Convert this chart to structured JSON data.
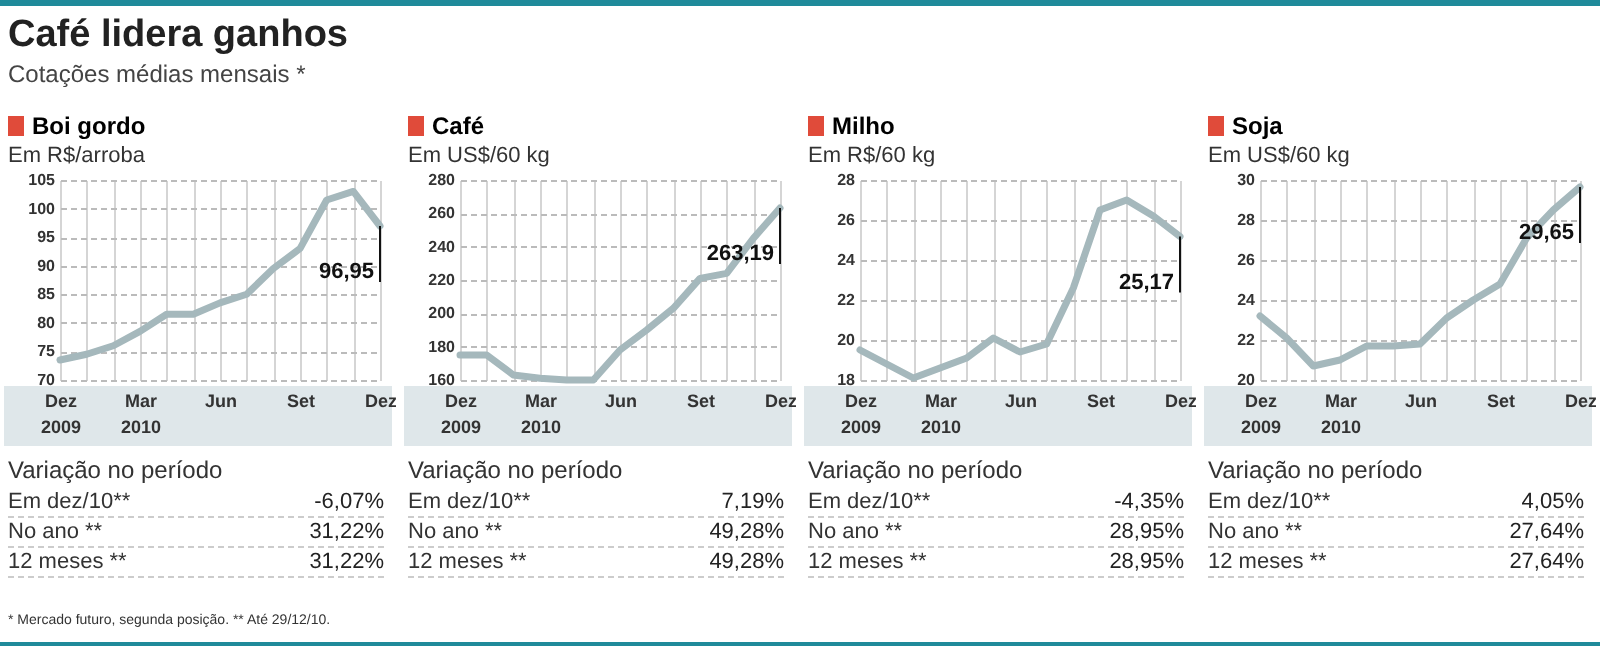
{
  "chart_data": [
    {
      "type": "other",
      "title": "Café lidera ganhos",
      "subtitle": "Cotações médias mensais *",
      "annotations": [
        "* Mercado futuro, segunda posição. ** Até 29/12/10."
      ]
    },
    {
      "type": "line",
      "title": "Boi gordo",
      "ylabel": "Em R$/arroba",
      "categories": [
        "Dez 2009",
        null,
        null,
        "Mar 2010",
        null,
        null,
        "Jun",
        null,
        null,
        "Set",
        null,
        null,
        "Dez"
      ],
      "series": [
        {
          "color": "#a5b8bc",
          "values": [
            73.5,
            74.5,
            76,
            78.5,
            81.5,
            81.5,
            83.5,
            85,
            89.5,
            93,
            101.5,
            103,
            96.95
          ],
          "value_labels": [
            null,
            null,
            null,
            null,
            null,
            null,
            null,
            null,
            null,
            null,
            null,
            null,
            "96,95"
          ]
        }
      ],
      "ylim": [
        70,
        105
      ],
      "yticks": [
        70,
        75,
        80,
        85,
        90,
        95,
        100,
        105
      ],
      "grid": true,
      "annotations": [
        "Variação no período",
        "Em dez/10**",
        "-6,07%",
        "No ano **",
        "31,22%",
        "12 meses **",
        "31,22%"
      ]
    },
    {
      "type": "line",
      "title": "Café",
      "ylabel": "Em US$/60 kg",
      "categories": [
        "Dez 2009",
        null,
        null,
        "Mar 2010",
        null,
        null,
        "Jun",
        null,
        null,
        "Set",
        null,
        null,
        "Dez"
      ],
      "series": [
        {
          "color": "#a5b8bc",
          "values": [
            175,
            175,
            163,
            161,
            160,
            160,
            178,
            190,
            203,
            221,
            224,
            245,
            263.19
          ],
          "value_labels": [
            null,
            null,
            null,
            null,
            null,
            null,
            null,
            null,
            null,
            null,
            null,
            null,
            "263,19"
          ]
        }
      ],
      "ylim": [
        160,
        280
      ],
      "yticks": [
        160,
        180,
        200,
        220,
        240,
        260,
        280
      ],
      "grid": true,
      "annotations": [
        "Variação no período",
        "Em dez/10**",
        "7,19%",
        "No ano **",
        "49,28%",
        "12 meses **",
        "49,28%"
      ]
    },
    {
      "type": "line",
      "title": "Milho",
      "ylabel": "Em R$/60 kg",
      "categories": [
        "Dez 2009",
        null,
        null,
        "Mar 2010",
        null,
        null,
        "Jun",
        null,
        null,
        "Set",
        null,
        null,
        "Dez"
      ],
      "series": [
        {
          "color": "#a5b8bc",
          "values": [
            19.5,
            18.8,
            18.1,
            18.6,
            19.1,
            20.1,
            19.4,
            19.8,
            22.6,
            26.5,
            27,
            26.2,
            25.17
          ],
          "value_labels": [
            null,
            null,
            null,
            null,
            null,
            null,
            null,
            null,
            null,
            null,
            null,
            null,
            "25,17"
          ]
        }
      ],
      "ylim": [
        18,
        28
      ],
      "yticks": [
        18,
        20,
        22,
        24,
        26,
        28
      ],
      "grid": true,
      "annotations": [
        "Variação no período",
        "Em dez/10**",
        "-4,35%",
        "No ano **",
        "28,95%",
        "12 meses **",
        "28,95%"
      ]
    },
    {
      "type": "line",
      "title": "Soja",
      "ylabel": "Em US$/60 kg",
      "categories": [
        "Dez 2009",
        null,
        null,
        "Mar 2010",
        null,
        null,
        "Jun",
        null,
        null,
        "Set",
        null,
        null,
        "Dez"
      ],
      "series": [
        {
          "color": "#a5b8bc",
          "values": [
            23.2,
            22.1,
            20.7,
            21,
            21.7,
            21.7,
            21.8,
            23.1,
            24,
            24.8,
            27.1,
            28.5,
            29.65
          ],
          "value_labels": [
            null,
            null,
            null,
            null,
            null,
            null,
            null,
            null,
            null,
            null,
            null,
            null,
            "29,65"
          ]
        }
      ],
      "ylim": [
        20,
        30
      ],
      "yticks": [
        20,
        22,
        24,
        26,
        28,
        30
      ],
      "grid": true,
      "annotations": [
        "Variação no período",
        "Em dez/10**",
        "4,05%",
        "No ano **",
        "27,64%",
        "12 meses **",
        "27,64%"
      ]
    }
  ]
}
